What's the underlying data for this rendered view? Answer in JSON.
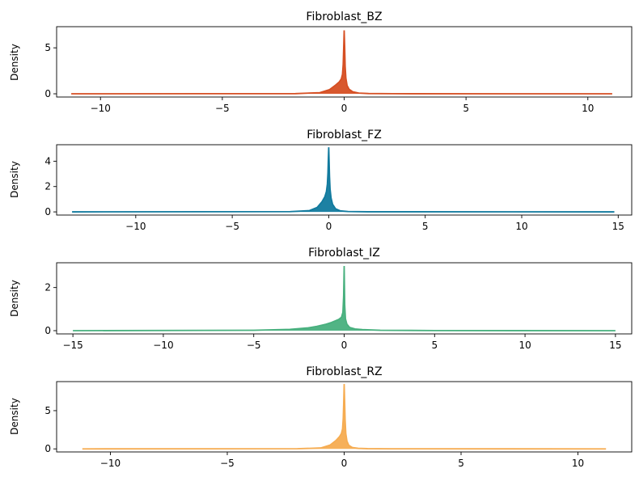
{
  "chart_data": [
    {
      "type": "area",
      "title": "Fibroblast_BZ",
      "xlabel": "",
      "ylabel": "Density",
      "color": "#d64f23",
      "xlim": [
        -11.8,
        11.8
      ],
      "ylim": [
        -0.35,
        7.3
      ],
      "xticks": [
        -10,
        -5,
        0,
        5,
        10
      ],
      "yticks": [
        0,
        5
      ],
      "xticklabels": [
        "−10",
        "−5",
        "0",
        "5",
        "10"
      ],
      "yticklabels": [
        "0",
        "5"
      ],
      "x": [
        -11.2,
        -2.0,
        -1.0,
        -0.6,
        -0.35,
        -0.2,
        -0.12,
        -0.07,
        -0.04,
        -0.02,
        0.0,
        0.02,
        0.04,
        0.07,
        0.12,
        0.2,
        0.35,
        0.6,
        1.0,
        2.0,
        11.0
      ],
      "y": [
        0.0,
        0.02,
        0.12,
        0.45,
        0.95,
        1.3,
        1.6,
        2.1,
        3.2,
        5.0,
        6.9,
        5.2,
        3.0,
        1.7,
        0.9,
        0.5,
        0.22,
        0.08,
        0.03,
        0.01,
        0.0
      ]
    },
    {
      "type": "area",
      "title": "Fibroblast_FZ",
      "xlabel": "",
      "ylabel": "Density",
      "color": "#117a9e",
      "xlim": [
        -14.1,
        15.7
      ],
      "ylim": [
        -0.25,
        5.3
      ],
      "xticks": [
        -10,
        -5,
        0,
        5,
        10,
        15
      ],
      "yticks": [
        0,
        2,
        4
      ],
      "xticklabels": [
        "−10",
        "−5",
        "0",
        "5",
        "10",
        "15"
      ],
      "yticklabels": [
        "0",
        "2",
        "4"
      ],
      "x": [
        -13.3,
        -2.0,
        -1.0,
        -0.6,
        -0.35,
        -0.2,
        -0.12,
        -0.07,
        -0.04,
        -0.02,
        0.0,
        0.02,
        0.04,
        0.07,
        0.12,
        0.2,
        0.35,
        0.6,
        1.0,
        2.0,
        14.8
      ],
      "y": [
        0.0,
        0.02,
        0.1,
        0.35,
        0.8,
        1.2,
        1.6,
        2.2,
        3.1,
        4.2,
        5.1,
        4.0,
        2.8,
        1.8,
        1.1,
        0.6,
        0.25,
        0.08,
        0.03,
        0.01,
        0.0
      ]
    },
    {
      "type": "area",
      "title": "Fibroblast_IZ",
      "xlabel": "",
      "ylabel": "Density",
      "color": "#48b07e",
      "xlim": [
        -15.9,
        15.9
      ],
      "ylim": [
        -0.15,
        3.15
      ],
      "xticks": [
        -15,
        -10,
        -5,
        0,
        5,
        10,
        15
      ],
      "yticks": [
        0,
        2
      ],
      "xticklabels": [
        "−15",
        "−10",
        "−5",
        "0",
        "5",
        "10",
        "15"
      ],
      "yticklabels": [
        "0",
        "2"
      ],
      "x": [
        -15.0,
        -5.0,
        -3.0,
        -2.0,
        -1.5,
        -1.0,
        -0.7,
        -0.5,
        -0.3,
        -0.15,
        -0.07,
        -0.03,
        0.0,
        0.03,
        0.07,
        0.15,
        0.3,
        0.6,
        1.0,
        2.0,
        5.0,
        15.0
      ],
      "y": [
        0.0,
        0.02,
        0.06,
        0.13,
        0.2,
        0.3,
        0.38,
        0.45,
        0.52,
        0.62,
        0.85,
        1.6,
        3.0,
        1.2,
        0.55,
        0.3,
        0.15,
        0.08,
        0.05,
        0.02,
        0.005,
        0.0
      ]
    },
    {
      "type": "area",
      "title": "Fibroblast_RZ",
      "xlabel": "",
      "ylabel": "Density",
      "color": "#f6ac51",
      "xlim": [
        -12.3,
        12.3
      ],
      "ylim": [
        -0.4,
        8.8
      ],
      "xticks": [
        -10,
        -5,
        0,
        5,
        10
      ],
      "yticks": [
        0,
        5
      ],
      "xticklabels": [
        "−10",
        "−5",
        "0",
        "5",
        "10"
      ],
      "yticklabels": [
        "0",
        "5"
      ],
      "x": [
        -11.2,
        -2.0,
        -1.0,
        -0.6,
        -0.35,
        -0.2,
        -0.12,
        -0.07,
        -0.04,
        -0.02,
        0.0,
        0.02,
        0.04,
        0.07,
        0.12,
        0.2,
        0.35,
        0.6,
        1.0,
        2.0,
        11.2
      ],
      "y": [
        0.0,
        0.02,
        0.12,
        0.5,
        1.1,
        1.6,
        2.0,
        2.6,
        4.0,
        6.0,
        8.5,
        6.2,
        3.8,
        2.0,
        1.0,
        0.45,
        0.18,
        0.07,
        0.03,
        0.01,
        0.0
      ]
    }
  ]
}
